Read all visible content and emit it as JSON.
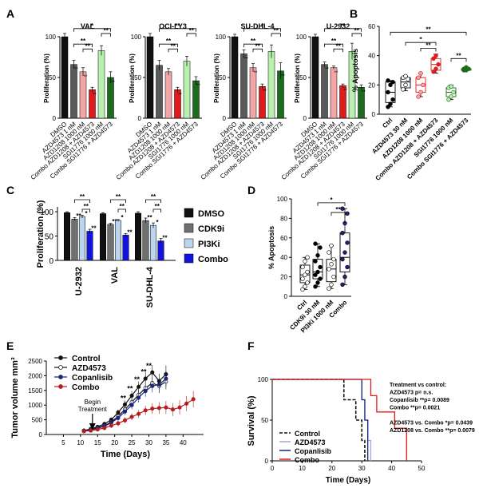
{
  "figure": {
    "panel_letters": [
      "A",
      "B",
      "C",
      "D",
      "E",
      "F"
    ]
  },
  "chart_data": [
    {
      "type": "bar",
      "panel": "A",
      "ylabel": "Proliferation (%)",
      "ylim": [
        0,
        100
      ],
      "yticks": [
        0,
        50,
        100
      ],
      "categories": [
        "DMSO",
        "AZD4573 1 nM",
        "AZD1208 1000 nM",
        "Combo AZD1208 + AZD4573",
        "SGI1776 1000 nM",
        "Combo SGI1776 + AZD4573"
      ],
      "colors": [
        "#111111",
        "#5a5a5a",
        "#f4a6a6",
        "#e01b1b",
        "#b9f0b0",
        "#1d6b1d"
      ],
      "subplots": [
        {
          "title": "VAL",
          "values": [
            100,
            66,
            57,
            35,
            83,
            50
          ],
          "errors": [
            4,
            5,
            5,
            3,
            6,
            7
          ],
          "stars": [
            "",
            "**",
            "**",
            "**",
            "",
            "**"
          ],
          "brackets": [
            {
              "from": 1,
              "to": 3,
              "label": "**"
            },
            {
              "from": 2,
              "to": 3,
              "label": "**"
            },
            {
              "from": 1,
              "to": 5,
              "label": "*"
            },
            {
              "from": 4,
              "to": 5,
              "label": "**"
            }
          ]
        },
        {
          "title": "OCI-LY3",
          "values": [
            100,
            65,
            57,
            35,
            70,
            46
          ],
          "errors": [
            4,
            6,
            4,
            3,
            6,
            5
          ],
          "stars": [
            "",
            "",
            "",
            "**",
            "",
            "**"
          ],
          "brackets": [
            {
              "from": 1,
              "to": 3,
              "label": "**"
            },
            {
              "from": 2,
              "to": 3,
              "label": "**"
            },
            {
              "from": 1,
              "to": 5,
              "label": "**"
            },
            {
              "from": 4,
              "to": 5,
              "label": "**"
            }
          ]
        },
        {
          "title": "SU-DHL-4",
          "values": [
            100,
            79,
            62,
            39,
            82,
            58
          ],
          "errors": [
            3,
            5,
            5,
            3,
            8,
            10
          ],
          "stars": [
            "",
            "**",
            "**",
            "**",
            "",
            "**"
          ],
          "brackets": [
            {
              "from": 1,
              "to": 3,
              "label": "**"
            },
            {
              "from": 2,
              "to": 3,
              "label": "**"
            },
            {
              "from": 1,
              "to": 5,
              "label": "*"
            },
            {
              "from": 4,
              "to": 5,
              "label": "**"
            }
          ]
        },
        {
          "title": "U-2932",
          "values": [
            100,
            66,
            62,
            40,
            82,
            38
          ],
          "errors": [
            3,
            3,
            2,
            2,
            10,
            3
          ],
          "stars": [
            "",
            "**",
            "**",
            "**",
            "",
            "**"
          ],
          "brackets": [
            {
              "from": 1,
              "to": 3,
              "label": "**"
            },
            {
              "from": 2,
              "to": 3,
              "label": "**"
            },
            {
              "from": 1,
              "to": 5,
              "label": "**"
            },
            {
              "from": 4,
              "to": 5,
              "label": "**"
            }
          ]
        }
      ]
    },
    {
      "type": "box",
      "panel": "B",
      "ylabel": "% Apoptosis",
      "ylim": [
        0,
        60
      ],
      "yticks": [
        0,
        20,
        40,
        60
      ],
      "categories": [
        "Ctrl",
        "AZD4573 30 nM",
        "AZD1208 1000 nM",
        "Combo AZD1208 + AZD4573",
        "SGI1776 1000 nM",
        "Combo SGI1776 + AZD4573"
      ],
      "boxes": [
        {
          "min": 5,
          "q1": 8,
          "median": 15,
          "q3": 22,
          "max": 23,
          "points": [
            5,
            7,
            10,
            15,
            20,
            22,
            23
          ],
          "face": "#000000",
          "box": "#000000"
        },
        {
          "min": 16,
          "q1": 18,
          "median": 22,
          "q3": 25,
          "max": 26,
          "points": [
            17,
            20,
            24,
            25,
            26
          ],
          "face": "#ffffff",
          "box": "#000000"
        },
        {
          "min": 12,
          "q1": 15,
          "median": 20,
          "q3": 25,
          "max": 28,
          "points": [
            12,
            15,
            20,
            25,
            28
          ],
          "face": "#f4a6a6",
          "box": "#e01b1b"
        },
        {
          "min": 28,
          "q1": 30,
          "median": 34,
          "q3": 38,
          "max": 41,
          "points": [
            29,
            31,
            34,
            38,
            40
          ],
          "face": "#e01b1b",
          "box": "#e01b1b"
        },
        {
          "min": 10,
          "q1": 12,
          "median": 15,
          "q3": 18,
          "max": 20,
          "points": [
            10,
            12,
            15,
            18,
            19
          ],
          "face": "#b9f0b0",
          "box": "#1d6b1d"
        },
        {
          "min": 30,
          "q1": 30,
          "median": 31,
          "q3": 31,
          "max": 32,
          "points": [
            30,
            30,
            31,
            31,
            32
          ],
          "face": "#1d6b1d",
          "box": "#1d6b1d"
        }
      ],
      "brackets": [
        {
          "from": 0,
          "to": 5,
          "label": "**"
        },
        {
          "from": 1,
          "to": 3,
          "label": "*"
        },
        {
          "from": 2,
          "to": 3,
          "label": "**"
        },
        {
          "from": 4,
          "to": 5,
          "label": "**"
        }
      ]
    },
    {
      "type": "bar",
      "panel": "C",
      "ylabel": "Proliferation (%)",
      "ylim": [
        0,
        110
      ],
      "yticks": [
        0,
        50,
        100
      ],
      "groups": [
        "U-2932",
        "VAL",
        "SU-DHL-4"
      ],
      "series": [
        {
          "name": "DMSO",
          "color": "#111111",
          "values": [
            98,
            96,
            97
          ],
          "errors": [
            2,
            2,
            3
          ],
          "stars": [
            "",
            "",
            ""
          ]
        },
        {
          "name": "CDK9i",
          "color": "#707070",
          "values": [
            85,
            74,
            82
          ],
          "errors": [
            3,
            2,
            5
          ],
          "stars": [
            "**",
            "**",
            "**"
          ]
        },
        {
          "name": "PI3Ki",
          "color": "#bcd5ee",
          "values": [
            90,
            82,
            72
          ],
          "errors": [
            3,
            2,
            5
          ],
          "stars": [
            "*",
            "*",
            "*"
          ]
        },
        {
          "name": "Combo",
          "color": "#1313e0",
          "values": [
            60,
            52,
            40
          ],
          "errors": [
            4,
            3,
            5
          ],
          "stars": [
            "**",
            "**",
            "**"
          ]
        }
      ],
      "brackets": [
        {
          "label": "**"
        },
        {
          "label": "**"
        }
      ]
    },
    {
      "type": "box",
      "panel": "D",
      "ylabel": "% Apoptosis",
      "ylim": [
        0,
        100
      ],
      "yticks": [
        0,
        20,
        40,
        60,
        80,
        100
      ],
      "categories": [
        "Ctrl",
        "CDK9i 30 nM",
        "PI3Ki 1000 nM",
        "Combo"
      ],
      "boxes": [
        {
          "min": 7,
          "q1": 14,
          "median": 22,
          "q3": 32,
          "max": 40,
          "points": [
            7,
            10,
            14,
            18,
            22,
            25,
            30,
            36,
            40
          ],
          "face": "#ffffff",
          "box": "#000000"
        },
        {
          "min": 10,
          "q1": 18,
          "median": 25,
          "q3": 38,
          "max": 54,
          "points": [
            10,
            14,
            18,
            22,
            25,
            30,
            36,
            42,
            50,
            54
          ],
          "face": "#000000",
          "box": "#000000"
        },
        {
          "min": 8,
          "q1": 15,
          "median": 28,
          "q3": 38,
          "max": 52,
          "points": [
            8,
            12,
            20,
            28,
            33,
            38,
            45,
            52
          ],
          "face": "#ffffff",
          "box": "#000000"
        },
        {
          "min": 12,
          "q1": 25,
          "median": 40,
          "q3": 65,
          "max": 90,
          "points": [
            12,
            20,
            30,
            38,
            45,
            55,
            65,
            75,
            85,
            90
          ],
          "face": "#1a237e",
          "box": "#000000"
        }
      ],
      "brackets": [
        {
          "from": 1,
          "to": 3,
          "label": "*"
        },
        {
          "from": 2,
          "to": 3,
          "label": "**"
        }
      ]
    },
    {
      "type": "line",
      "panel": "E",
      "xlabel": "Time (Days)",
      "ylabel": "Tumor volume mm³",
      "xlim": [
        0,
        46
      ],
      "ylim": [
        0,
        2500
      ],
      "xticks": [
        5,
        10,
        15,
        20,
        25,
        30,
        35,
        40
      ],
      "yticks": [
        0,
        500,
        1000,
        1500,
        2000,
        2500
      ],
      "annotation": {
        "text": [
          "Begin",
          "Treatment"
        ],
        "x": 13.5
      },
      "significance": [
        {
          "x": 22.5,
          "y": 1150,
          "label": "**"
        },
        {
          "x": 24.5,
          "y": 1480,
          "label": "**"
        },
        {
          "x": 26.5,
          "y": 1800,
          "label": "**"
        },
        {
          "x": 28.5,
          "y": 2050,
          "label": "**"
        },
        {
          "x": 30,
          "y": 2250,
          "label": "**"
        }
      ],
      "series": [
        {
          "name": "Control",
          "color": "#111111",
          "fill": "#111111",
          "x": [
            11,
            13,
            15,
            17,
            19,
            21,
            23,
            25,
            27,
            29,
            31,
            33,
            35
          ],
          "y": [
            130,
            190,
            260,
            360,
            500,
            750,
            1020,
            1320,
            1620,
            1900,
            2110,
            1820,
            2050
          ],
          "err": [
            30,
            40,
            50,
            60,
            80,
            100,
            140,
            160,
            180,
            220,
            250,
            250,
            300
          ]
        },
        {
          "name": "AZD4573",
          "color": "#111111",
          "fill": "#ffffff",
          "x": [
            11,
            13,
            15,
            17,
            19,
            21,
            23,
            25,
            27,
            29,
            31,
            33,
            35
          ],
          "y": [
            130,
            170,
            230,
            300,
            420,
            620,
            850,
            1100,
            1350,
            1580,
            1750,
            1650,
            1800
          ],
          "err": [
            30,
            40,
            50,
            60,
            80,
            100,
            120,
            140,
            160,
            200,
            220,
            240,
            260
          ]
        },
        {
          "name": "Copanlisib",
          "color": "#1a237e",
          "fill": "#1a237e",
          "x": [
            11,
            13,
            15,
            17,
            19,
            21,
            23,
            25,
            27,
            29,
            31,
            33,
            35
          ],
          "y": [
            120,
            160,
            210,
            280,
            400,
            560,
            780,
            1000,
            1250,
            1480,
            1650,
            1700,
            1900
          ],
          "err": [
            30,
            40,
            50,
            60,
            80,
            100,
            120,
            140,
            160,
            200,
            220,
            240,
            260
          ]
        },
        {
          "name": "Combo",
          "color": "#b71c1c",
          "fill": "#b71c1c",
          "x": [
            11,
            13,
            15,
            17,
            19,
            21,
            23,
            25,
            27,
            29,
            31,
            33,
            35,
            37,
            39,
            41,
            43
          ],
          "y": [
            110,
            130,
            170,
            220,
            300,
            380,
            480,
            600,
            700,
            820,
            880,
            900,
            920,
            850,
            920,
            1050,
            1200
          ],
          "err": [
            30,
            40,
            50,
            60,
            80,
            90,
            100,
            120,
            140,
            160,
            180,
            200,
            220,
            220,
            240,
            260,
            280
          ]
        }
      ]
    },
    {
      "type": "line",
      "panel": "F",
      "xlabel": "Time (Days)",
      "ylabel": "Survival (%)",
      "xlim": [
        0,
        50
      ],
      "ylim": [
        0,
        100
      ],
      "xticks": [
        0,
        10,
        20,
        30,
        40,
        50
      ],
      "yticks": [
        0,
        50,
        100
      ],
      "series": [
        {
          "name": "Control",
          "color": "#111111",
          "dash": true,
          "steps": [
            [
              0,
              100
            ],
            [
              24,
              100
            ],
            [
              24,
              75
            ],
            [
              28,
              75
            ],
            [
              28,
              50
            ],
            [
              30,
              50
            ],
            [
              30,
              25
            ],
            [
              31,
              25
            ],
            [
              31,
              0
            ]
          ]
        },
        {
          "name": "AZD4573",
          "color": "#9fa8da",
          "dash": false,
          "steps": [
            [
              0,
              100
            ],
            [
              30,
              100
            ],
            [
              30,
              75
            ],
            [
              31,
              75
            ],
            [
              31,
              50
            ],
            [
              32,
              50
            ],
            [
              32,
              25
            ],
            [
              33,
              25
            ],
            [
              33,
              0
            ]
          ]
        },
        {
          "name": "Copanlisib",
          "color": "#1a237e",
          "dash": false,
          "steps": [
            [
              0,
              100
            ],
            [
              30,
              100
            ],
            [
              30,
              75
            ],
            [
              31,
              75
            ],
            [
              31,
              50
            ],
            [
              32,
              50
            ],
            [
              32,
              0
            ]
          ]
        },
        {
          "name": "Combo",
          "color": "#e01b1b",
          "dash": false,
          "steps": [
            [
              0,
              100
            ],
            [
              33,
              100
            ],
            [
              33,
              80
            ],
            [
              35,
              80
            ],
            [
              35,
              60
            ],
            [
              41,
              60
            ],
            [
              41,
              40
            ],
            [
              45,
              40
            ],
            [
              45,
              0
            ]
          ]
        }
      ],
      "stats_text": [
        "Treatment vs control:",
        "AZD4573 p= n.s.",
        "Copanlisib **p= 0.0089",
        "Combo **p= 0.0021",
        "",
        "AZD4573 vs. Combo *p= 0.0439",
        "AZD1208 vs. Combo **p= 0.0079"
      ]
    }
  ]
}
